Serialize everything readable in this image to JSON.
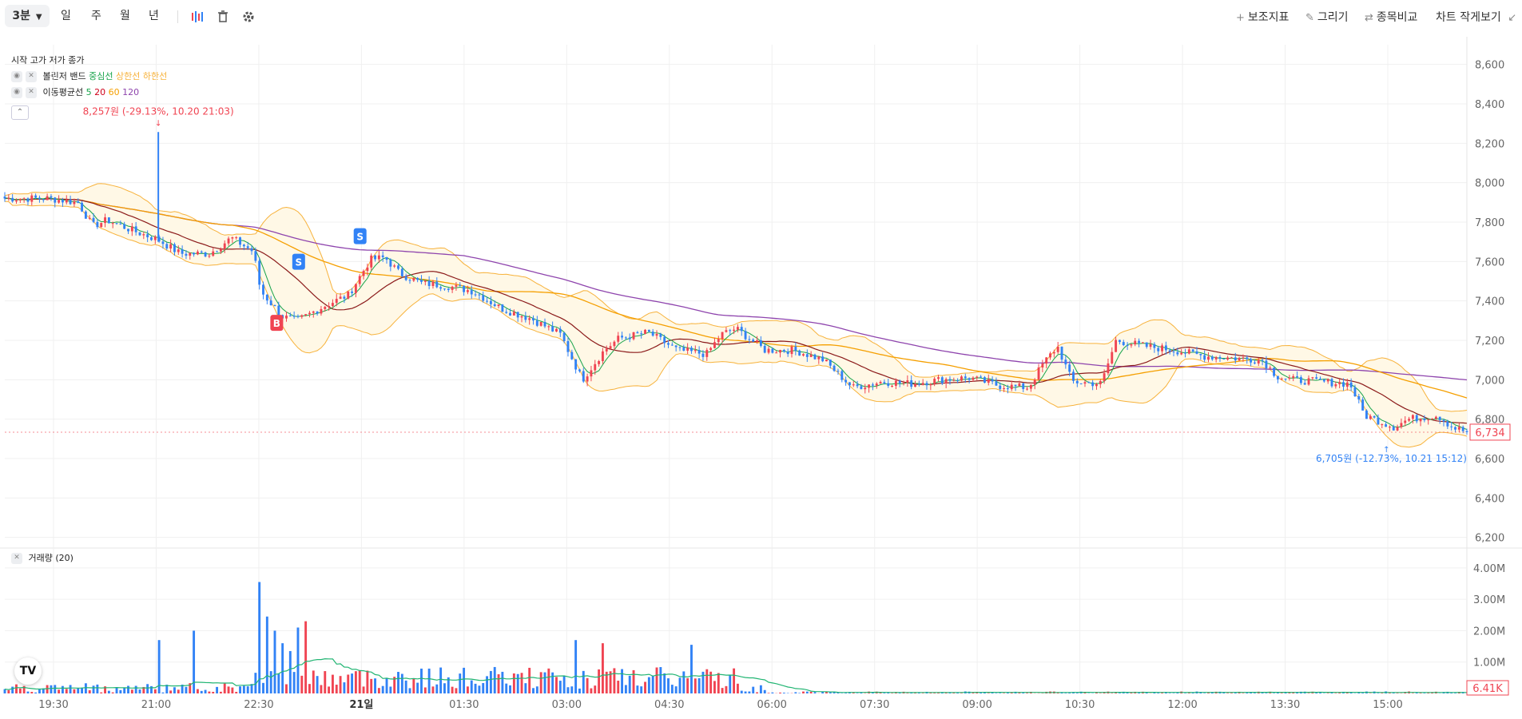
{
  "toolbar": {
    "interval": "3분",
    "periods": [
      "일",
      "주",
      "월",
      "년"
    ],
    "right": {
      "indicators": "보조지표",
      "draw": "그리기",
      "compare": "종목비교",
      "shrink": "차트 작게보기"
    }
  },
  "legend": {
    "ohlc": "시작 고가 저가 종가",
    "bollinger": {
      "name": "볼린저 밴드",
      "mid": "중심선",
      "upper": "상한선",
      "lower": "하한선"
    },
    "ma": {
      "name": "이동평균선",
      "periods": [
        "5",
        "20",
        "60",
        "120"
      ]
    }
  },
  "volume_legend": "거래량 (20)",
  "annotations": {
    "high_label": "8,257원 (-29.13%, 10.20 21:03)",
    "low_label": "6,705원 (-12.73%, 10.21 15:12)",
    "signals": [
      "S",
      "S",
      "B"
    ]
  },
  "colors": {
    "up": "#f04452",
    "down": "#3182f6",
    "ma5": "#17a34a",
    "ma20": "#8b1a1a",
    "ma60": "#f59f00",
    "ma120": "#8e44ad",
    "band": "#f7b23b",
    "band_fill": "#fff8e6",
    "vol_ma": "#22b573",
    "grid": "#f0f0f0"
  },
  "chart_data": {
    "type": "candlestick",
    "x_ticks": [
      "19:30",
      "21:00",
      "22:30",
      "21일",
      "01:30",
      "03:00",
      "04:30",
      "06:00",
      "07:30",
      "09:00",
      "10:30",
      "12:00",
      "13:30",
      "15:00"
    ],
    "price_axis": [
      "8,600",
      "8,400",
      "8,200",
      "8,000",
      "7,800",
      "7,600",
      "7,400",
      "7,200",
      "7,000",
      "6,800",
      "6,600",
      "6,400",
      "6,200"
    ],
    "price_ylim": [
      6150,
      8700
    ],
    "last_price": "6,734",
    "last_price_value": 6734,
    "high": 8257,
    "low": 6705,
    "price_path": [
      [
        0,
        7920
      ],
      [
        0.03,
        7920
      ],
      [
        0.05,
        7900
      ],
      [
        0.06,
        7780
      ],
      [
        0.07,
        7810
      ],
      [
        0.09,
        7750
      ],
      [
        0.105,
        7710
      ],
      [
        0.12,
        7640
      ],
      [
        0.14,
        7640
      ],
      [
        0.155,
        7720
      ],
      [
        0.17,
        7650
      ],
      [
        0.175,
        7450
      ],
      [
        0.19,
        7320
      ],
      [
        0.2,
        7300
      ],
      [
        0.21,
        7340
      ],
      [
        0.22,
        7380
      ],
      [
        0.235,
        7430
      ],
      [
        0.25,
        7610
      ],
      [
        0.26,
        7620
      ],
      [
        0.27,
        7540
      ],
      [
        0.285,
        7490
      ],
      [
        0.3,
        7480
      ],
      [
        0.32,
        7450
      ],
      [
        0.34,
        7360
      ],
      [
        0.36,
        7310
      ],
      [
        0.38,
        7230
      ],
      [
        0.395,
        7000
      ],
      [
        0.41,
        7150
      ],
      [
        0.42,
        7210
      ],
      [
        0.44,
        7240
      ],
      [
        0.46,
        7150
      ],
      [
        0.48,
        7130
      ],
      [
        0.49,
        7230
      ],
      [
        0.5,
        7260
      ],
      [
        0.52,
        7150
      ],
      [
        0.54,
        7150
      ],
      [
        0.56,
        7100
      ],
      [
        0.58,
        6960
      ],
      [
        0.6,
        6990
      ],
      [
        0.62,
        6980
      ],
      [
        0.64,
        7000
      ],
      [
        0.66,
        7010
      ],
      [
        0.68,
        6970
      ],
      [
        0.7,
        6960
      ],
      [
        0.71,
        7080
      ],
      [
        0.72,
        7170
      ],
      [
        0.73,
        6990
      ],
      [
        0.75,
        6980
      ],
      [
        0.76,
        7200
      ],
      [
        0.78,
        7170
      ],
      [
        0.8,
        7150
      ],
      [
        0.82,
        7120
      ],
      [
        0.84,
        7110
      ],
      [
        0.86,
        7100
      ],
      [
        0.87,
        7020
      ],
      [
        0.88,
        7000
      ],
      [
        0.9,
        6990
      ],
      [
        0.92,
        6980
      ],
      [
        0.93,
        6820
      ],
      [
        0.94,
        6790
      ],
      [
        0.95,
        6760
      ],
      [
        0.96,
        6800
      ],
      [
        0.98,
        6820
      ],
      [
        0.99,
        6760
      ],
      [
        1,
        6734
      ]
    ],
    "volume_axis": [
      "4.00M",
      "3.00M",
      "2.00M",
      "1.00M"
    ],
    "volume_ylim": [
      0,
      4200000
    ],
    "last_volume": "6.41K",
    "volume_spikes": [
      [
        0.105,
        1700000
      ],
      [
        0.13,
        2000000
      ],
      [
        0.174,
        3550000
      ],
      [
        0.18,
        2450000
      ],
      [
        0.185,
        2000000
      ],
      [
        0.19,
        1600000
      ],
      [
        0.195,
        1350000
      ],
      [
        0.2,
        2100000
      ],
      [
        0.205,
        2300000
      ],
      [
        0.39,
        1700000
      ],
      [
        0.41,
        1600000
      ],
      [
        0.47,
        1550000
      ]
    ]
  }
}
